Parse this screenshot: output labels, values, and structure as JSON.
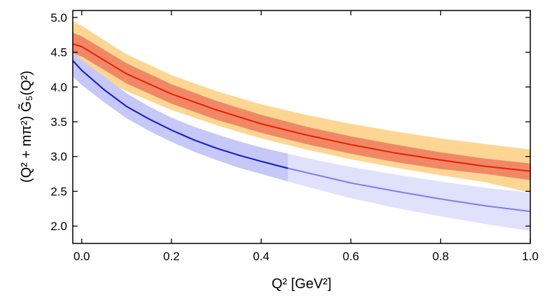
{
  "chart_data": {
    "type": "line",
    "title": "",
    "xlabel": "Q² [GeV²]",
    "ylabel": "(Q² + mπ²) G̃₅(Q²)",
    "xlim": [
      -0.02,
      1.0
    ],
    "ylim": [
      1.75,
      5.1
    ],
    "xticks": [
      "0.0",
      "0.2",
      "0.4",
      "0.6",
      "0.8",
      "1.0"
    ],
    "yticks": [
      "2.0",
      "2.5",
      "3.0",
      "3.5",
      "4.0",
      "4.5",
      "5.0"
    ],
    "grid": false,
    "colors": {
      "red_line": "#ee1c00",
      "red_band": "#f08866",
      "orange_band": "#fed694",
      "blue_line": "#0e16d8",
      "blue_band": "#c6c8f8",
      "blue_band_extrapolated": "#e0e1fb",
      "blue_line_extrapolated": "#7b7ff0"
    },
    "series": [
      {
        "role": "orange-band",
        "x": [
          -0.02,
          0.0,
          0.1,
          0.2,
          0.3,
          0.4,
          0.5,
          0.6,
          0.7,
          0.8,
          0.9,
          1.0
        ],
        "upper": [
          4.95,
          4.88,
          4.47,
          4.17,
          3.94,
          3.75,
          3.6,
          3.47,
          3.36,
          3.26,
          3.18,
          3.1
        ],
        "lower": [
          4.3,
          4.26,
          3.94,
          3.67,
          3.45,
          3.26,
          3.1,
          2.96,
          2.84,
          2.73,
          2.63,
          2.48
        ]
      },
      {
        "role": "red-band",
        "x": [
          -0.02,
          0.0,
          0.1,
          0.2,
          0.3,
          0.4,
          0.5,
          0.6,
          0.7,
          0.8,
          0.9,
          1.0
        ],
        "upper": [
          4.78,
          4.73,
          4.34,
          4.04,
          3.8,
          3.6,
          3.43,
          3.29,
          3.17,
          3.06,
          2.97,
          2.9
        ],
        "lower": [
          4.48,
          4.44,
          4.05,
          3.76,
          3.53,
          3.34,
          3.18,
          3.04,
          2.92,
          2.82,
          2.75,
          2.66
        ]
      },
      {
        "role": "red-line",
        "x": [
          -0.02,
          0.0,
          0.1,
          0.2,
          0.3,
          0.4,
          0.5,
          0.6,
          0.7,
          0.8,
          0.9,
          1.0
        ],
        "values": [
          4.62,
          4.58,
          4.19,
          3.9,
          3.67,
          3.47,
          3.31,
          3.17,
          3.05,
          2.95,
          2.86,
          2.79
        ]
      },
      {
        "role": "blue-band",
        "x": [
          -0.02,
          0.0,
          0.05,
          0.1,
          0.15,
          0.2,
          0.25,
          0.3,
          0.35,
          0.4,
          0.46
        ],
        "upper": [
          4.5,
          4.39,
          4.15,
          3.91,
          3.72,
          3.56,
          3.43,
          3.32,
          3.22,
          3.13,
          3.04
        ],
        "lower": [
          4.15,
          4.03,
          3.78,
          3.55,
          3.37,
          3.21,
          3.07,
          2.95,
          2.84,
          2.75,
          2.64
        ]
      },
      {
        "role": "blue-band-extrapolated",
        "x": [
          0.46,
          0.5,
          0.6,
          0.7,
          0.8,
          0.9,
          1.0
        ],
        "upper": [
          3.04,
          2.98,
          2.85,
          2.74,
          2.64,
          2.55,
          2.48
        ],
        "lower": [
          2.64,
          2.57,
          2.4,
          2.26,
          2.14,
          2.03,
          1.93
        ]
      },
      {
        "role": "blue-line",
        "x": [
          -0.02,
          0.0,
          0.05,
          0.1,
          0.15,
          0.2,
          0.25,
          0.3,
          0.35,
          0.4,
          0.46
        ],
        "values": [
          4.38,
          4.24,
          3.96,
          3.72,
          3.54,
          3.38,
          3.24,
          3.12,
          3.02,
          2.93,
          2.83
        ]
      },
      {
        "role": "blue-line-extrapolated",
        "x": [
          0.46,
          0.5,
          0.6,
          0.7,
          0.8,
          0.9,
          1.0
        ],
        "values": [
          2.83,
          2.77,
          2.62,
          2.5,
          2.39,
          2.29,
          2.21
        ]
      }
    ]
  }
}
